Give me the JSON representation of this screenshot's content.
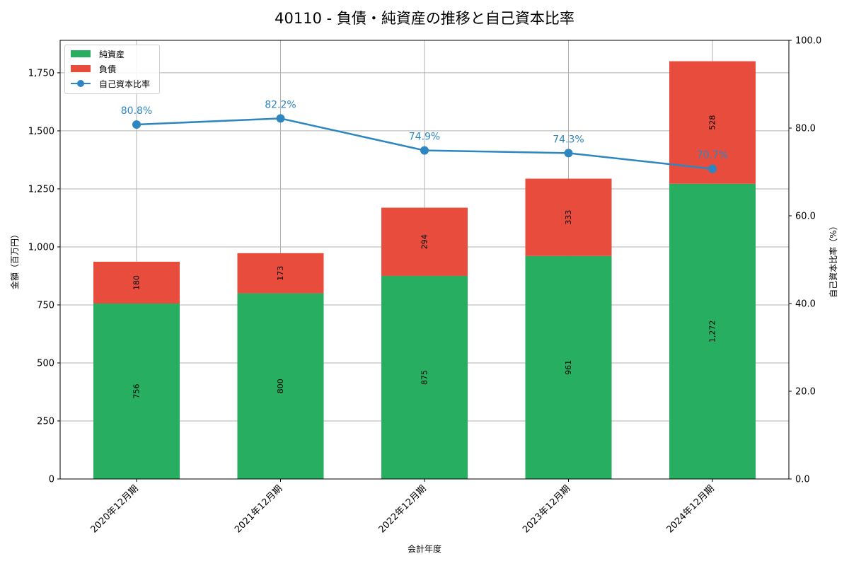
{
  "title": "40110 - 負債・純資産の推移と自己資本比率",
  "legend": {
    "items": [
      {
        "label": "純資産",
        "type": "bar",
        "color": "#27ae60"
      },
      {
        "label": "負債",
        "type": "bar",
        "color": "#e74c3c"
      },
      {
        "label": "自己資本比率",
        "type": "line",
        "color": "#2e86c1"
      }
    ]
  },
  "axes": {
    "xlabel": "会計年度",
    "ylabel_left": "金額（百万円）",
    "ylabel_right": "自己資本比率（%）",
    "left_ticks": [
      "0",
      "250",
      "500",
      "750",
      "1,000",
      "1,250",
      "1,500",
      "1,750"
    ],
    "right_ticks": [
      "0.0",
      "20.0",
      "40.0",
      "60.0",
      "80.0",
      "100.0"
    ]
  },
  "chart_data": {
    "type": "bar",
    "stacked": true,
    "title": "40110 - 負債・純資産の推移と自己資本比率",
    "xlabel": "会計年度",
    "ylabel": "金額（百万円）",
    "ylabel_secondary": "自己資本比率（%）",
    "categories": [
      "2020年12月期",
      "2021年12月期",
      "2022年12月期",
      "2023年12月期",
      "2024年12月期"
    ],
    "series": [
      {
        "name": "純資産",
        "type": "bar",
        "color": "#27ae60",
        "values": [
          756,
          800,
          875,
          961,
          1272
        ],
        "labels": [
          "756",
          "800",
          "875",
          "961",
          "1,272"
        ]
      },
      {
        "name": "負債",
        "type": "bar",
        "color": "#e74c3c",
        "values": [
          180,
          173,
          294,
          333,
          528
        ],
        "labels": [
          "180",
          "173",
          "294",
          "333",
          "528"
        ]
      },
      {
        "name": "自己資本比率",
        "type": "line",
        "axis": "secondary",
        "color": "#2e86c1",
        "values": [
          80.8,
          82.2,
          74.9,
          74.3,
          70.7
        ],
        "labels": [
          "80.8%",
          "82.2%",
          "74.9%",
          "74.3%",
          "70.7%"
        ]
      }
    ],
    "ylim": [
      0,
      1890
    ],
    "ylim_secondary": [
      0,
      100
    ],
    "grid": true,
    "legend_position": "upper left"
  }
}
